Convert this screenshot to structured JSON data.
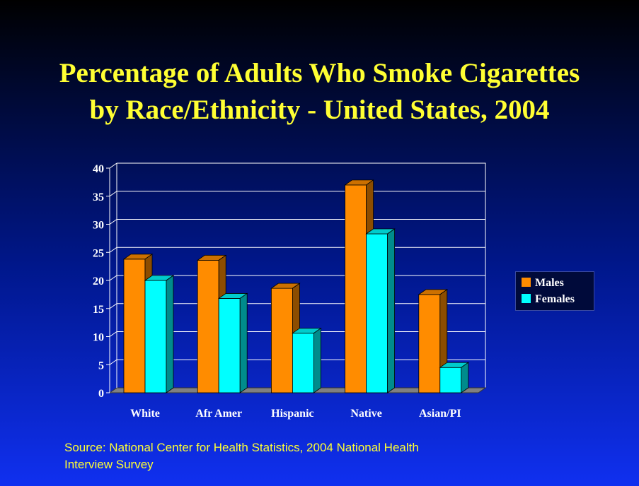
{
  "title_lines": [
    "Percentage of Adults Who Smoke Cigarettes",
    "by Race/Ethnicity - United States, 2004"
  ],
  "source": {
    "lines": [
      "Source: National Center for Health Statistics, 2004 National Health",
      "Interview Survey"
    ]
  },
  "colors": {
    "title": "#ffff33",
    "males": "#ff8c00",
    "females": "#00ffff"
  },
  "chart_data": {
    "type": "bar",
    "categories": [
      "White",
      "Afr Amer",
      "Hispanic",
      "Native",
      "Asian/PI"
    ],
    "series": [
      {
        "name": "Males",
        "values": [
          23.8,
          23.6,
          18.6,
          37.0,
          17.5
        ],
        "color": "#ff8c00"
      },
      {
        "name": "Females",
        "values": [
          20.0,
          16.8,
          10.6,
          28.3,
          4.5
        ],
        "color": "#00ffff"
      }
    ],
    "ylim": [
      0,
      40
    ],
    "yticks": [
      0,
      5,
      10,
      15,
      20,
      25,
      30,
      35,
      40
    ],
    "grid": true,
    "legend_position": "right",
    "three_d": true
  }
}
